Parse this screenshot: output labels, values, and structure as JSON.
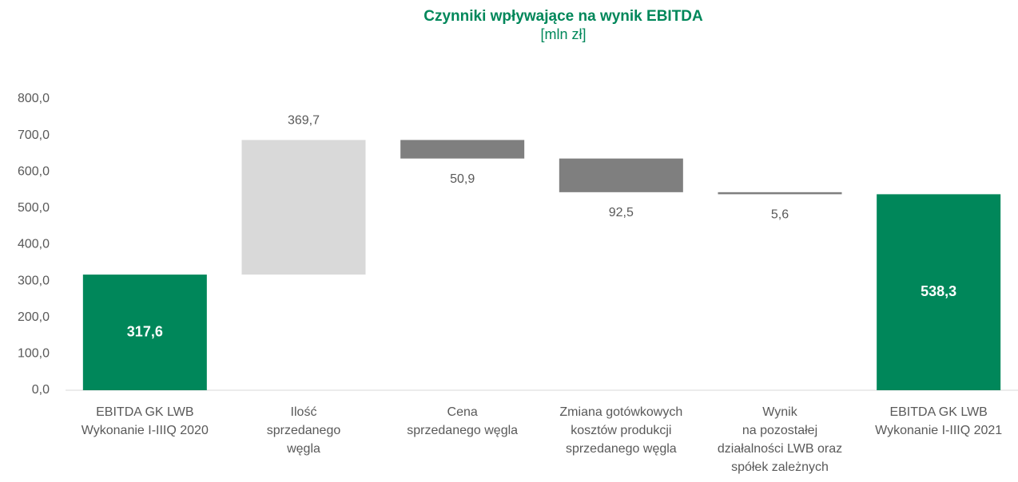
{
  "chart_data": {
    "type": "waterfall",
    "title": "Czynniki wpływające na wynik EBITDA",
    "subtitle": "[mln zł]",
    "categories": [
      [
        "EBITDA GK LWB",
        "Wykonanie I-IIIQ 2020"
      ],
      [
        "Ilość",
        "sprzedanego",
        "węgla"
      ],
      [
        "Cena",
        "sprzedanego węgla"
      ],
      [
        "Zmiana gotówkowych",
        "kosztów produkcji",
        "sprzedanego węgla"
      ],
      [
        "Wynik",
        "na pozostałej",
        "działalności LWB oraz",
        "spółek zależnych"
      ],
      [
        "EBITDA GK LWB",
        "Wykonanie I-IIIQ 2021"
      ]
    ],
    "measures": [
      "total",
      "relative",
      "relative",
      "relative",
      "relative",
      "total"
    ],
    "values": [
      317.6,
      369.7,
      -50.9,
      -92.5,
      -5.6,
      538.3
    ],
    "value_labels": [
      "317,6",
      "369,7",
      "50,9",
      "92,5",
      "5,6",
      "538,3"
    ],
    "colors": {
      "total": "#00875a",
      "increase": "#d9d9d9",
      "decrease": "#7f7f7f"
    },
    "ylim": [
      0,
      800
    ],
    "yticks": [
      {
        "value": 0,
        "label": "0,0"
      },
      {
        "value": 100,
        "label": "100,0"
      },
      {
        "value": 200,
        "label": "200,0"
      },
      {
        "value": 300,
        "label": "300,0"
      },
      {
        "value": 400,
        "label": "400,0"
      },
      {
        "value": 500,
        "label": "500,0"
      },
      {
        "value": 600,
        "label": "600,0"
      },
      {
        "value": 700,
        "label": "700,0"
      },
      {
        "value": 800,
        "label": "800,0"
      }
    ]
  }
}
